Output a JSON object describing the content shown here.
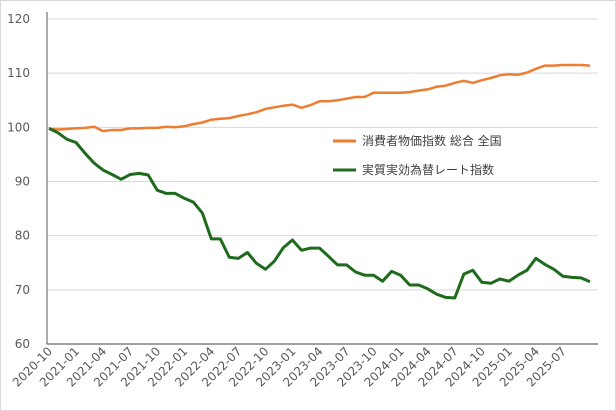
{
  "chart_data": {
    "type": "line",
    "title": "",
    "xlabel": "",
    "ylabel": "",
    "ylim": [
      60,
      120
    ],
    "yticks": [
      "60",
      "70",
      "80",
      "90",
      "100",
      "110",
      "120"
    ],
    "grid": true,
    "legend_placement": "center-right",
    "x": [
      "2020-10",
      "2020-11",
      "2020-12",
      "2021-01",
      "2021-02",
      "2021-03",
      "2021-04",
      "2021-05",
      "2021-06",
      "2021-07",
      "2021-08",
      "2021-09",
      "2021-10",
      "2021-11",
      "2021-12",
      "2022-01",
      "2022-02",
      "2022-03",
      "2022-04",
      "2022-05",
      "2022-06",
      "2022-07",
      "2022-08",
      "2022-09",
      "2022-10",
      "2022-11",
      "2022-12",
      "2023-01",
      "2023-02",
      "2023-03",
      "2023-04",
      "2023-05",
      "2023-06",
      "2023-07",
      "2023-08",
      "2023-09",
      "2023-10",
      "2023-11",
      "2023-12",
      "2024-01",
      "2024-02",
      "2024-03",
      "2024-04",
      "2024-05",
      "2024-06",
      "2024-07",
      "2024-08",
      "2024-09",
      "2024-10",
      "2024-11",
      "2024-12",
      "2025-01",
      "2025-02",
      "2025-03",
      "2025-04",
      "2025-05",
      "2025-06",
      "2025-07",
      "2025-08",
      "2025-09",
      "2025-10"
    ],
    "xtick_labels": [
      "2020-10",
      "2021-01",
      "2021-04",
      "2021-07",
      "2021-10",
      "2022-01",
      "2022-04",
      "2022-07",
      "2022-10",
      "2023-01",
      "2023-04",
      "2023-07",
      "2023-10",
      "2024-01",
      "2024-04",
      "2024-07",
      "2024-10",
      "2025-01",
      "2025-04",
      "2025-07"
    ],
    "series": [
      {
        "name": "消費者物価指数 総合 全国",
        "color": "#ed7d31",
        "values": [
          99.7,
          99.6,
          99.7,
          99.8,
          99.9,
          100.1,
          99.3,
          99.5,
          99.5,
          99.8,
          99.8,
          99.9,
          99.9,
          100.1,
          100.0,
          100.2,
          100.6,
          100.9,
          101.4,
          101.6,
          101.7,
          102.1,
          102.4,
          102.8,
          103.4,
          103.7,
          104.0,
          104.2,
          103.6,
          104.1,
          104.8,
          104.8,
          105.0,
          105.3,
          105.6,
          105.6,
          106.4,
          106.4,
          106.4,
          106.4,
          106.5,
          106.8,
          107.0,
          107.5,
          107.7,
          108.2,
          108.6,
          108.2,
          108.7,
          109.1,
          109.6,
          109.8,
          109.7,
          110.1,
          110.8,
          111.4,
          111.4,
          111.5,
          111.5,
          111.5,
          111.4
        ]
      },
      {
        "name": "実質実効為替レート指数",
        "color": "#1e6b1e",
        "values": [
          99.8,
          99.0,
          97.8,
          97.2,
          95.2,
          93.4,
          92.1,
          91.3,
          90.4,
          91.3,
          91.5,
          91.2,
          88.4,
          87.8,
          87.8,
          86.9,
          86.2,
          84.2,
          79.4,
          79.4,
          76.0,
          75.8,
          76.9,
          74.9,
          73.8,
          75.3,
          77.8,
          79.2,
          77.3,
          77.7,
          77.7,
          76.2,
          74.6,
          74.6,
          73.3,
          72.7,
          72.7,
          71.6,
          73.4,
          72.7,
          70.9,
          70.9,
          70.2,
          69.2,
          68.6,
          68.5,
          72.9,
          73.6,
          71.4,
          71.2,
          72.0,
          71.6,
          72.7,
          73.6,
          75.8,
          74.7,
          73.8,
          72.5,
          72.3,
          72.2,
          71.5
        ]
      }
    ]
  }
}
